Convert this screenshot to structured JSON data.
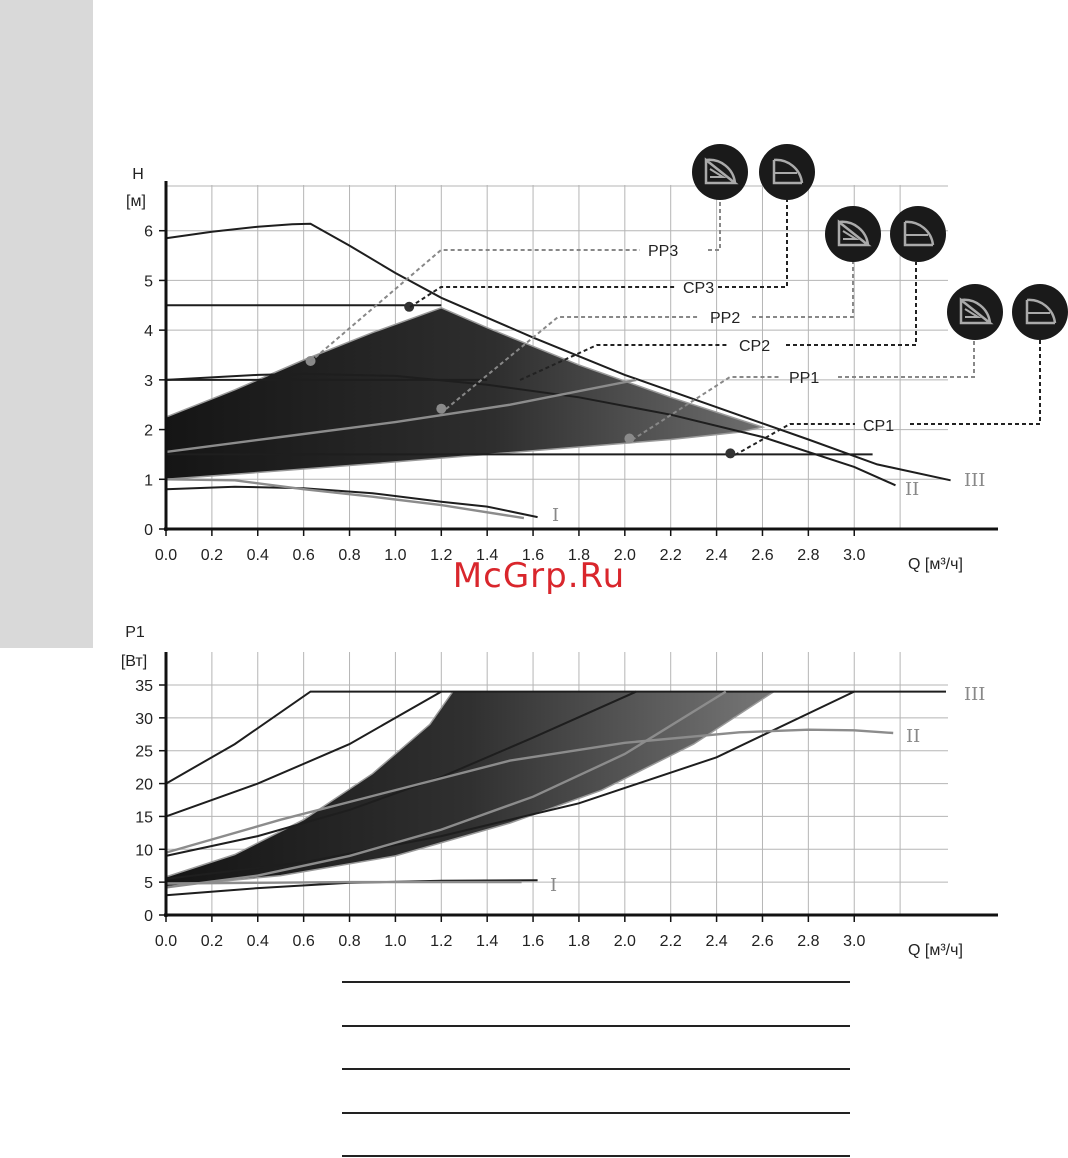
{
  "watermark": "McGrp.Ru",
  "chart_data": [
    {
      "type": "line",
      "title": "",
      "ylabel_top": "H",
      "ylabel_unit": "[м]",
      "xlabel": "Q [м³/ч]",
      "xlim": [
        0,
        3.4
      ],
      "ylim": [
        0,
        7
      ],
      "x_ticks": [
        "0.0",
        "0.2",
        "0.4",
        "0.6",
        "0.8",
        "1.0",
        "1.2",
        "1.4",
        "1.6",
        "1.8",
        "2.0",
        "2.2",
        "2.4",
        "2.6",
        "2.8",
        "3.0"
      ],
      "y_ticks": [
        "0",
        "1",
        "2",
        "3",
        "4",
        "5",
        "6"
      ],
      "grid": true,
      "shaded_region": {
        "name": "",
        "points": [
          [
            0,
            2.25
          ],
          [
            0.3,
            2.8
          ],
          [
            0.6,
            3.4
          ],
          [
            0.9,
            3.95
          ],
          [
            1.2,
            4.45
          ],
          [
            1.4,
            4.05
          ],
          [
            1.8,
            3.3
          ],
          [
            2.2,
            2.65
          ],
          [
            2.6,
            2.05
          ],
          [
            2.5,
            1.95
          ],
          [
            2.2,
            1.8
          ],
          [
            1.8,
            1.65
          ],
          [
            1.4,
            1.5
          ],
          [
            1.0,
            1.35
          ],
          [
            0.5,
            1.17
          ],
          [
            0,
            1.0
          ]
        ]
      },
      "series": [
        {
          "name": "III",
          "points": [
            [
              0,
              5.85
            ],
            [
              0.2,
              5.98
            ],
            [
              0.4,
              6.08
            ],
            [
              0.55,
              6.13
            ],
            [
              0.63,
              6.14
            ],
            [
              0.8,
              5.7
            ],
            [
              1.0,
              5.15
            ],
            [
              1.2,
              4.65
            ],
            [
              1.6,
              3.85
            ],
            [
              2.0,
              3.1
            ],
            [
              2.4,
              2.45
            ],
            [
              2.8,
              1.8
            ],
            [
              3.1,
              1.3
            ],
            [
              3.42,
              0.98
            ]
          ]
        },
        {
          "name": "II",
          "points": [
            [
              0,
              3.0
            ],
            [
              0.4,
              3.1
            ],
            [
              0.6,
              3.12
            ],
            [
              1.0,
              3.08
            ],
            [
              1.4,
              2.9
            ],
            [
              1.8,
              2.65
            ],
            [
              2.2,
              2.3
            ],
            [
              2.6,
              1.85
            ],
            [
              3.0,
              1.25
            ],
            [
              3.18,
              0.88
            ]
          ]
        },
        {
          "name": "I",
          "points": [
            [
              0,
              0.8
            ],
            [
              0.3,
              0.85
            ],
            [
              0.6,
              0.82
            ],
            [
              0.9,
              0.72
            ],
            [
              1.2,
              0.55
            ],
            [
              1.4,
              0.45
            ],
            [
              1.62,
              0.24
            ]
          ]
        },
        {
          "name": "",
          "points": [
            [
              0,
              1.0
            ],
            [
              0.3,
              0.98
            ],
            [
              0.6,
              0.8
            ],
            [
              0.9,
              0.65
            ],
            [
              1.2,
              0.48
            ],
            [
              1.56,
              0.22
            ]
          ]
        },
        {
          "name": "",
          "points": [
            [
              0,
              1.55
            ],
            [
              0.5,
              1.85
            ],
            [
              1.0,
              2.15
            ],
            [
              1.5,
              2.5
            ],
            [
              2.05,
              3.0
            ]
          ]
        },
        {
          "name": "CP",
          "points": [
            [
              0,
              4.5
            ],
            [
              1.2,
              4.5
            ]
          ]
        },
        {
          "name": "CP",
          "points": [
            [
              0,
              3.0
            ],
            [
              1.4,
              3.0
            ]
          ]
        },
        {
          "name": "CP",
          "points": [
            [
              0,
              1.5
            ],
            [
              3.08,
              1.5
            ]
          ]
        }
      ],
      "roman_labels": [
        "III",
        "II",
        "I"
      ],
      "operating_points": [
        [
          0.63,
          3.38
        ],
        [
          1.06,
          4.47
        ],
        [
          1.2,
          2.42
        ],
        [
          2.02,
          1.82
        ],
        [
          2.46,
          1.52
        ]
      ],
      "mode_labels": [
        "PP3",
        "CP3",
        "PP2",
        "CP2",
        "PP1",
        "CP1"
      ]
    },
    {
      "type": "line",
      "title": "",
      "ylabel_top": "P1",
      "ylabel_unit": "[Вт]",
      "xlabel": "Q [м³/ч]",
      "xlim": [
        0,
        3.4
      ],
      "ylim": [
        0,
        35
      ],
      "x_ticks": [
        "0.0",
        "0.2",
        "0.4",
        "0.6",
        "0.8",
        "1.0",
        "1.2",
        "1.4",
        "1.6",
        "1.8",
        "2.0",
        "2.2",
        "2.4",
        "2.6",
        "2.8",
        "3.0"
      ],
      "y_ticks": [
        "0",
        "5",
        "10",
        "15",
        "20",
        "25",
        "30",
        "35"
      ],
      "grid": true,
      "shaded_region": {
        "name": "",
        "points": [
          [
            0,
            5.8
          ],
          [
            0.3,
            9.2
          ],
          [
            0.6,
            14.5
          ],
          [
            0.9,
            21.5
          ],
          [
            1.15,
            29
          ],
          [
            1.25,
            34
          ],
          [
            2.65,
            34
          ],
          [
            2.3,
            26
          ],
          [
            1.9,
            19
          ],
          [
            1.5,
            14
          ],
          [
            1.0,
            9
          ],
          [
            0.5,
            6
          ],
          [
            0,
            4.3
          ]
        ]
      },
      "series": [
        {
          "name": "III",
          "points": [
            [
              0,
              20
            ],
            [
              0.3,
              26
            ],
            [
              0.63,
              34
            ],
            [
              3.4,
              34
            ]
          ]
        },
        {
          "name": "",
          "points": [
            [
              0,
              15
            ],
            [
              0.4,
              20
            ],
            [
              0.8,
              26
            ],
            [
              1.2,
              34
            ]
          ]
        },
        {
          "name": "",
          "points": [
            [
              0,
              9
            ],
            [
              0.4,
              12
            ],
            [
              0.8,
              16
            ],
            [
              1.2,
              21
            ],
            [
              1.6,
              27
            ],
            [
              2.05,
              34
            ]
          ]
        },
        {
          "name": "",
          "points": [
            [
              0,
              5.5
            ],
            [
              0.6,
              8
            ],
            [
              1.2,
              12
            ],
            [
              1.8,
              17
            ],
            [
              2.4,
              24
            ],
            [
              3.0,
              34
            ]
          ]
        },
        {
          "name": "II",
          "points": [
            [
              0,
              9.5
            ],
            [
              0.5,
              14.5
            ],
            [
              1.0,
              19
            ],
            [
              1.5,
              23.5
            ],
            [
              2.0,
              26.2
            ],
            [
              2.5,
              27.8
            ],
            [
              2.8,
              28.2
            ],
            [
              3.0,
              28.1
            ],
            [
              3.17,
              27.7
            ]
          ]
        },
        {
          "name": "",
          "points": [
            [
              0,
              4.2
            ],
            [
              0.4,
              6
            ],
            [
              0.8,
              9
            ],
            [
              1.2,
              13
            ],
            [
              1.6,
              18
            ],
            [
              2.0,
              24.5
            ],
            [
              2.44,
              34
            ]
          ]
        },
        {
          "name": "I",
          "points": [
            [
              0,
              3.0
            ],
            [
              0.4,
              4.1
            ],
            [
              0.8,
              4.9
            ],
            [
              1.2,
              5.2
            ],
            [
              1.62,
              5.3
            ]
          ]
        },
        {
          "name": "",
          "points": [
            [
              0,
              4.8
            ],
            [
              0.4,
              4.9
            ],
            [
              0.8,
              5.0
            ],
            [
              1.2,
              5.0
            ],
            [
              1.55,
              5.0
            ]
          ]
        }
      ],
      "roman_labels": [
        "III",
        "II",
        "I"
      ]
    }
  ]
}
